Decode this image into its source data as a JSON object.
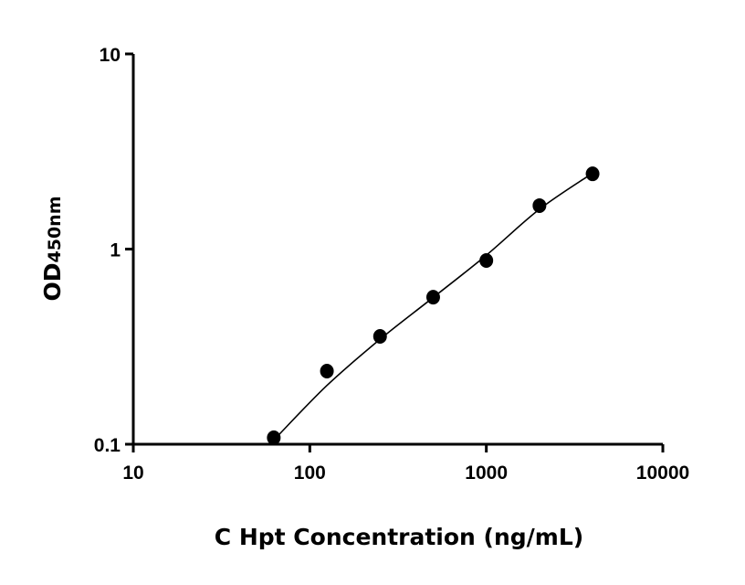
{
  "chart_data": {
    "type": "scatter",
    "title": "",
    "xlabel": "C Hpt Concentration (ng/mL)",
    "ylabel": "OD450nm",
    "ylabel_main": "OD",
    "ylabel_sub": "450nm",
    "x_scale": "log",
    "y_scale": "log",
    "xlim": [
      10,
      10000
    ],
    "ylim": [
      0.1,
      10
    ],
    "x_ticks": [
      "10",
      "100",
      "1000",
      "10000"
    ],
    "x_tick_values": [
      10,
      100,
      1000,
      10000
    ],
    "y_ticks": [
      "0.1",
      "1",
      "10"
    ],
    "y_tick_values": [
      0.1,
      1,
      10
    ],
    "grid": false,
    "legend": "none",
    "marker_color": "#000000",
    "points": {
      "x": [
        62.5,
        125,
        250,
        500,
        1000,
        2000,
        4000
      ],
      "y": [
        0.108,
        0.237,
        0.357,
        0.567,
        0.874,
        1.67,
        2.43
      ]
    },
    "fit_curve": {
      "x": [
        62.5,
        125,
        250,
        500,
        1000,
        2000,
        4000
      ],
      "y": [
        0.105,
        0.2,
        0.345,
        0.565,
        0.93,
        1.6,
        2.45
      ]
    }
  }
}
